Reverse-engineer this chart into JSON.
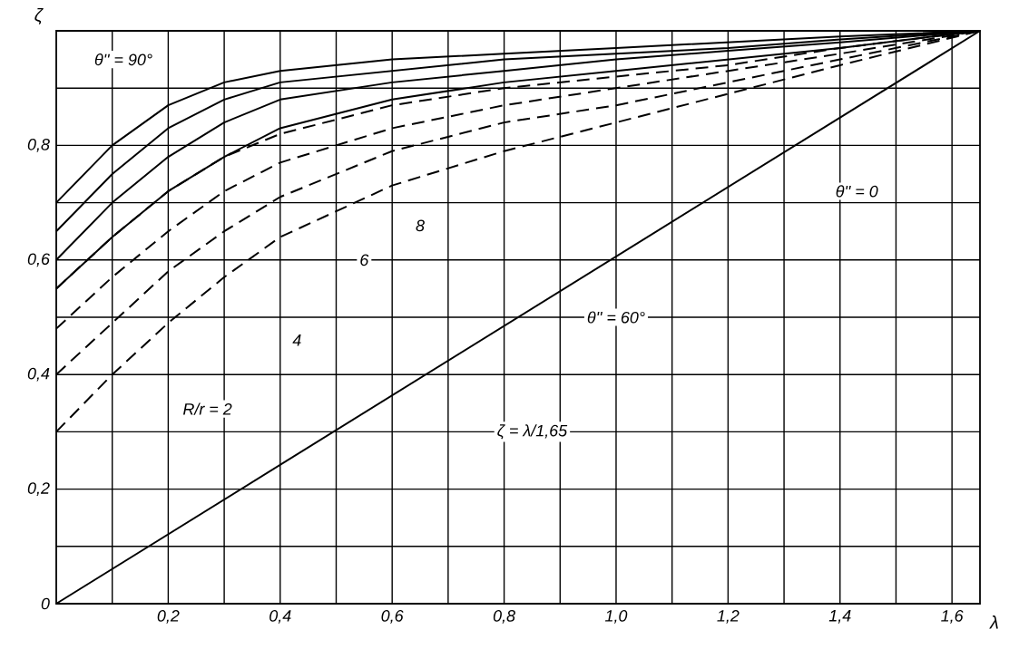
{
  "chart_data": {
    "type": "line",
    "xlabel": "λ",
    "ylabel": "ζ",
    "xlim": [
      0,
      1.65
    ],
    "ylim": [
      0,
      1.0
    ],
    "xticks": [
      {
        "value": 0.1,
        "label": null
      },
      {
        "value": 0.2,
        "label": "0,2"
      },
      {
        "value": 0.3,
        "label": null
      },
      {
        "value": 0.4,
        "label": "0,4"
      },
      {
        "value": 0.5,
        "label": null
      },
      {
        "value": 0.6,
        "label": "0,6"
      },
      {
        "value": 0.7,
        "label": null
      },
      {
        "value": 0.8,
        "label": "0,8"
      },
      {
        "value": 0.9,
        "label": null
      },
      {
        "value": 1.0,
        "label": "1,0"
      },
      {
        "value": 1.1,
        "label": null
      },
      {
        "value": 1.2,
        "label": "1,2"
      },
      {
        "value": 1.3,
        "label": null
      },
      {
        "value": 1.4,
        "label": "1,4"
      },
      {
        "value": 1.5,
        "label": null
      },
      {
        "value": 1.6,
        "label": "1,6"
      }
    ],
    "yticks": [
      0,
      {
        "value": 0.1,
        "label": null
      },
      {
        "value": 0.2,
        "label": "0,2"
      },
      {
        "value": 0.3,
        "label": null
      },
      {
        "value": 0.4,
        "label": "0,4"
      },
      {
        "value": 0.5,
        "label": null
      },
      {
        "value": 0.6,
        "label": "0,6"
      },
      {
        "value": 0.7,
        "label": null
      },
      {
        "value": 0.8,
        "label": "0,8"
      },
      {
        "value": 0.9,
        "label": null
      }
    ],
    "grid": true,
    "series": [
      {
        "color": "#000000",
        "line_style": "solid",
        "x": [
          0,
          0.1,
          0.2,
          0.3,
          0.4,
          0.6,
          0.8,
          1.0,
          1.2,
          1.4,
          1.65
        ],
        "values": [
          0.7,
          0.8,
          0.87,
          0.91,
          0.93,
          0.95,
          0.96,
          0.97,
          0.98,
          0.99,
          1.0
        ]
      },
      {
        "color": "#000000",
        "line_style": "solid",
        "x": [
          0,
          0.1,
          0.2,
          0.3,
          0.4,
          0.6,
          0.8,
          1.0,
          1.2,
          1.4,
          1.65
        ],
        "values": [
          0.65,
          0.75,
          0.83,
          0.88,
          0.91,
          0.93,
          0.95,
          0.96,
          0.97,
          0.985,
          1.0
        ]
      },
      {
        "color": "#000000",
        "line_style": "solid",
        "x": [
          0,
          0.1,
          0.2,
          0.3,
          0.4,
          0.6,
          0.8,
          1.0,
          1.2,
          1.4,
          1.65
        ],
        "values": [
          0.6,
          0.7,
          0.78,
          0.84,
          0.88,
          0.91,
          0.93,
          0.95,
          0.965,
          0.98,
          1.0
        ]
      },
      {
        "color": "#000000",
        "line_style": "solid",
        "x": [
          0,
          0.1,
          0.2,
          0.3,
          0.4,
          0.6,
          0.8,
          1.0,
          1.2,
          1.4,
          1.65
        ],
        "values": [
          0.55,
          0.64,
          0.72,
          0.78,
          0.83,
          0.88,
          0.91,
          0.93,
          0.95,
          0.97,
          1.0
        ]
      },
      {
        "color": "#000000",
        "line_style": "dashed",
        "x": [
          0,
          0.1,
          0.2,
          0.3,
          0.4,
          0.6,
          0.8,
          1.0,
          1.2,
          1.4,
          1.65
        ],
        "values": [
          0.55,
          0.64,
          0.72,
          0.78,
          0.82,
          0.87,
          0.9,
          0.92,
          0.94,
          0.97,
          1.0
        ]
      },
      {
        "color": "#000000",
        "line_style": "dashed",
        "x": [
          0,
          0.1,
          0.2,
          0.3,
          0.4,
          0.6,
          0.8,
          1.0,
          1.2,
          1.4,
          1.65
        ],
        "values": [
          0.48,
          0.57,
          0.65,
          0.72,
          0.77,
          0.83,
          0.87,
          0.9,
          0.93,
          0.96,
          1.0
        ]
      },
      {
        "color": "#000000",
        "line_style": "dashed",
        "x": [
          0,
          0.1,
          0.2,
          0.3,
          0.4,
          0.6,
          0.8,
          1.0,
          1.2,
          1.4,
          1.65
        ],
        "values": [
          0.4,
          0.49,
          0.58,
          0.65,
          0.71,
          0.79,
          0.84,
          0.87,
          0.91,
          0.95,
          1.0
        ]
      },
      {
        "color": "#000000",
        "line_style": "dashed",
        "x": [
          0,
          0.1,
          0.2,
          0.3,
          0.4,
          0.6,
          0.8,
          1.0,
          1.2,
          1.4,
          1.65
        ],
        "values": [
          0.3,
          0.4,
          0.49,
          0.57,
          0.64,
          0.73,
          0.79,
          0.84,
          0.89,
          0.94,
          1.0
        ]
      },
      {
        "color": "#000000",
        "line_style": "solid",
        "x": [
          0,
          1.65
        ],
        "values": [
          0,
          1.0
        ]
      }
    ],
    "annotations": [
      "θ'' = 90°",
      "8",
      "6",
      "4",
      "R/r = 2",
      "ζ = λ/1,65",
      "θ'' = 60°",
      "θ'' = 0"
    ]
  }
}
